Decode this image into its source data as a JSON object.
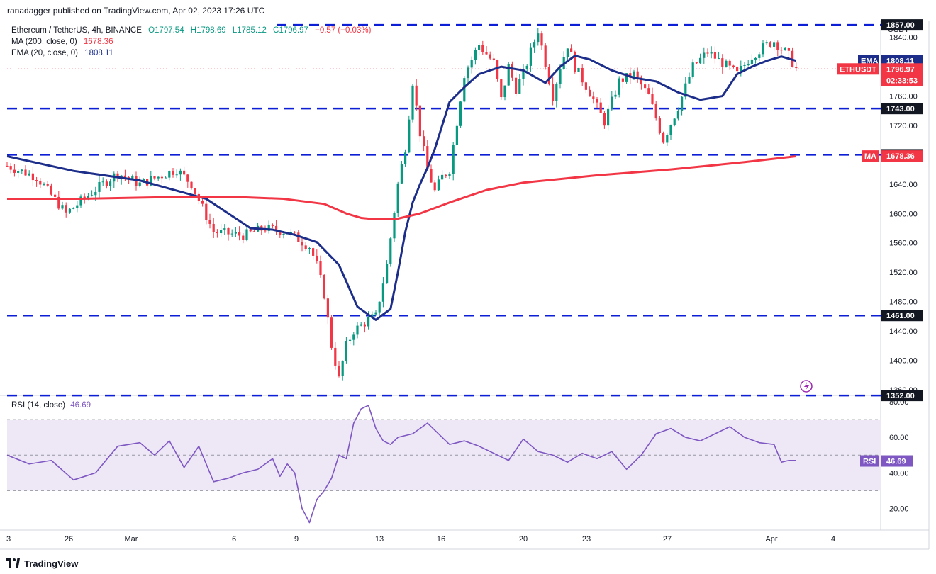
{
  "header": {
    "published": "ranadagger published on TradingView.com, Apr 02, 2023 17:26 UTC"
  },
  "legend": {
    "symbol": "Ethereum / TetherUS, 4h, BINANCE",
    "o": "O1797.54",
    "h": "H1798.69",
    "l": "L1785.12",
    "c": "C1796.97",
    "chg": "−0.57 (−0.03%)",
    "ma_label": "MA (200, close, 0)",
    "ma_value": "1678.36",
    "ema_label": "EMA (20, close, 0)",
    "ema_value": "1808.11"
  },
  "rsi_legend": {
    "label": "RSI (14, close)",
    "value": "46.69"
  },
  "footer": {
    "brand": "TradingView"
  },
  "colors": {
    "up": "#089981",
    "down": "#f23645",
    "ema": "#1c2e8a",
    "ma": "#f23645",
    "level": "#0c1fd6",
    "rsi": "#7e57c2",
    "rsi_band": "#ede7f6"
  },
  "icons": [
    "tradingview-logo-icon",
    "flash-icon"
  ],
  "chart_data": [
    {
      "type": "candlestick",
      "title": "Ethereum / TetherUS, 4h, BINANCE",
      "ylabel": "USDT",
      "ylim": [
        1352,
        1870
      ],
      "y_ticks": [
        1360,
        1400,
        1440,
        1480,
        1520,
        1560,
        1600,
        1640,
        1680,
        1720,
        1760,
        1800,
        1840
      ],
      "x_ticks": [
        "3",
        "26",
        "Mar",
        "6",
        "9",
        "13",
        "16",
        "20",
        "23",
        "27",
        "Apr",
        "4"
      ],
      "horizontal_levels": [
        "1857.00",
        "1743.00",
        "1680.00",
        "1461.00",
        "1352.00"
      ],
      "price_tags": [
        {
          "label": "EMA",
          "value": "1808.11"
        },
        {
          "label": "ETHUSDT",
          "value": "1796.97",
          "countdown": "02:33:53"
        },
        {
          "label": "MA",
          "value": "1678.36"
        }
      ],
      "series": [
        {
          "name": "EMA (20, close, 0)",
          "x": [
            0,
            18,
            36,
            54,
            66,
            72,
            78,
            84,
            90,
            95,
            100,
            104,
            106,
            108,
            110,
            112,
            114,
            116,
            118,
            120,
            124,
            128,
            134,
            140,
            146,
            150,
            154,
            158,
            164,
            170,
            176,
            182,
            188,
            194,
            198,
            202,
            206,
            210,
            214
          ],
          "values": [
            1678,
            1658,
            1645,
            1620,
            1580,
            1578,
            1571,
            1561,
            1530,
            1473,
            1455,
            1470,
            1520,
            1575,
            1615,
            1640,
            1662,
            1688,
            1720,
            1752,
            1772,
            1790,
            1800,
            1795,
            1778,
            1800,
            1815,
            1810,
            1795,
            1785,
            1780,
            1765,
            1755,
            1760,
            1790,
            1800,
            1808,
            1814,
            1808
          ]
        },
        {
          "name": "MA (200, close, 0)",
          "x": [
            0,
            20,
            40,
            60,
            75,
            86,
            92,
            96,
            100,
            106,
            112,
            120,
            130,
            140,
            150,
            160,
            170,
            180,
            190,
            200,
            214
          ],
          "values": [
            1620,
            1620,
            1622,
            1623,
            1620,
            1613,
            1600,
            1594,
            1592,
            1593,
            1600,
            1615,
            1632,
            1642,
            1647,
            1652,
            1656,
            1660,
            1665,
            1670,
            1678
          ]
        }
      ]
    },
    {
      "type": "line",
      "title": "RSI (14, close)",
      "ylim": [
        10,
        80
      ],
      "y_ticks": [
        20,
        40,
        60,
        80
      ],
      "band": [
        30,
        70
      ],
      "midline": 50,
      "last_value": "46.69",
      "series": [
        {
          "name": "RSI",
          "x": [
            0,
            6,
            12,
            18,
            24,
            30,
            36,
            40,
            44,
            48,
            52,
            56,
            60,
            64,
            68,
            72,
            74,
            76,
            78,
            80,
            82,
            84,
            86,
            88,
            90,
            92,
            94,
            96,
            98,
            100,
            102,
            104,
            106,
            110,
            114,
            118,
            120,
            124,
            128,
            132,
            136,
            140,
            144,
            148,
            152,
            156,
            160,
            164,
            168,
            172,
            176,
            180,
            184,
            188,
            192,
            196,
            200,
            204,
            208,
            210,
            212,
            214
          ],
          "values": [
            50,
            45,
            47,
            36,
            40,
            55,
            57,
            50,
            58,
            43,
            55,
            35,
            37,
            40,
            42,
            48,
            38,
            45,
            40,
            20,
            12,
            25,
            30,
            37,
            50,
            48,
            68,
            76,
            78,
            65,
            58,
            56,
            60,
            62,
            68,
            60,
            56,
            58,
            55,
            51,
            47,
            59,
            52,
            50,
            46,
            51,
            48,
            52,
            42,
            50,
            62,
            65,
            60,
            58,
            62,
            66,
            60,
            57,
            56,
            46,
            47,
            47
          ]
        }
      ]
    }
  ]
}
